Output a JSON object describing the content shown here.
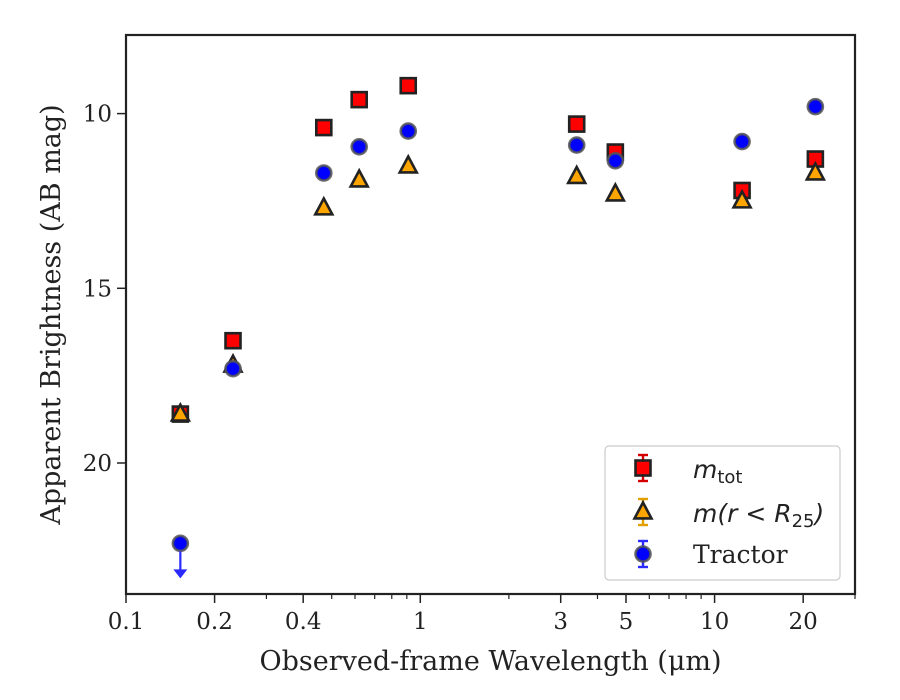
{
  "chart_data": {
    "type": "scatter",
    "xlabel": "Observed-frame Wavelength (μm)",
    "ylabel": "Apparent Brightness (AB mag)",
    "xscale": "log",
    "xlim": [
      0.1,
      30
    ],
    "ylim": [
      23.75,
      7.75
    ],
    "y_inverted": true,
    "x_ticks": [
      0.1,
      0.2,
      0.4,
      1,
      3,
      5,
      10,
      20
    ],
    "x_tick_labels": [
      "0.1",
      "0.2",
      "0.4",
      "1",
      "3",
      "5",
      "10",
      "20"
    ],
    "y_ticks": [
      10,
      15,
      20
    ],
    "y_tick_labels": [
      "10",
      "15",
      "20"
    ],
    "grid": false,
    "legend_position": "lower-right",
    "series": [
      {
        "name": "m_tot",
        "legend_main": "m",
        "legend_sub": "tot",
        "marker": "square",
        "color": "#ff0000",
        "x": [
          0.153,
          0.231,
          0.47,
          0.62,
          0.91,
          3.4,
          4.6,
          12.4,
          22
        ],
        "y": [
          18.6,
          16.5,
          10.4,
          9.6,
          9.2,
          10.3,
          11.1,
          12.2,
          11.3
        ]
      },
      {
        "name": "m(r < R_25)",
        "legend_main": "m(r < R",
        "legend_sub": "25",
        "legend_close": ")",
        "marker": "triangle",
        "color": "#ffa500",
        "x": [
          0.153,
          0.231,
          0.47,
          0.62,
          0.91,
          3.4,
          4.6,
          12.4,
          22
        ],
        "y": [
          18.6,
          17.2,
          12.7,
          11.9,
          11.5,
          11.8,
          12.3,
          12.5,
          11.7
        ]
      },
      {
        "name": "Tractor",
        "marker": "circle",
        "color": "#0000ff",
        "x": [
          0.153,
          0.231,
          0.47,
          0.62,
          0.91,
          3.4,
          4.6,
          12.4,
          22
        ],
        "y": [
          22.3,
          17.3,
          11.7,
          10.95,
          10.5,
          10.9,
          11.35,
          10.8,
          9.8
        ],
        "upper_limit": [
          true,
          false,
          false,
          false,
          false,
          false,
          false,
          false,
          false
        ]
      }
    ]
  }
}
